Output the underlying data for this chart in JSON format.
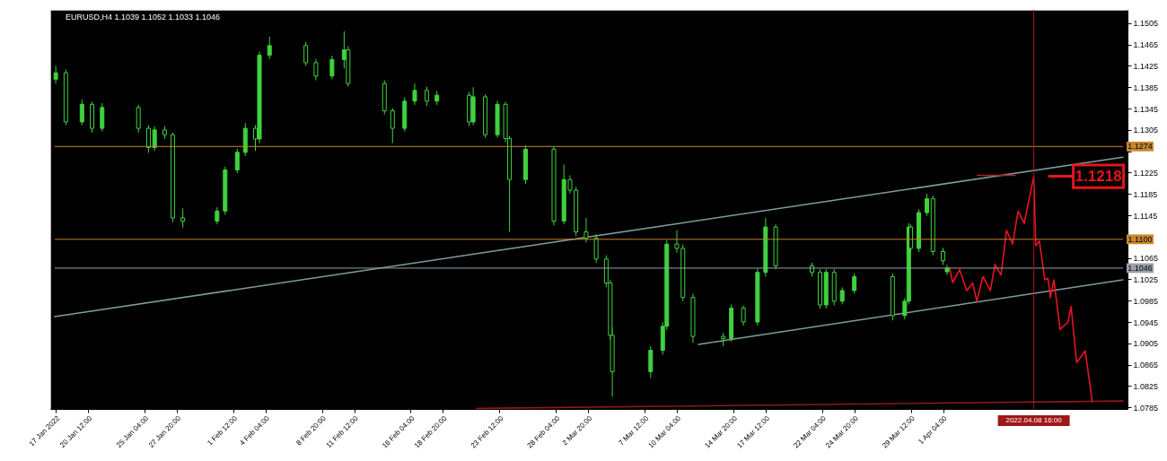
{
  "chart_data": {
    "type": "candlestick",
    "title": "EURUSD,H4 1.1039 1.1052 1.1033 1.1046",
    "xlim": [
      "2022-01-17T18:00",
      "2022-04-16T01:00"
    ],
    "xticks": [
      {
        "value": "2022-01-17T20:00",
        "label": "17 Jan 2022"
      },
      {
        "value": "2022-01-20T12:00",
        "label": "20 Jan 12:00"
      },
      {
        "value": "2022-01-25T04:00",
        "label": "25 Jan 04:00"
      },
      {
        "value": "2022-01-27T20:00",
        "label": "27 Jan 20:00"
      },
      {
        "value": "2022-02-01T12:00",
        "label": "1 Feb 12:00"
      },
      {
        "value": "2022-02-04T04:00",
        "label": "4 Feb 04:00"
      },
      {
        "value": "2022-02-08T20:00",
        "label": "8 Feb 20:00"
      },
      {
        "value": "2022-02-11T12:00",
        "label": "11 Feb 12:00"
      },
      {
        "value": "2022-02-16T04:00",
        "label": "16 Feb 04:00"
      },
      {
        "value": "2022-02-18T20:00",
        "label": "18 Feb 20:00"
      },
      {
        "value": "2022-02-23T12:00",
        "label": "23 Feb 12:00"
      },
      {
        "value": "2022-02-28T04:00",
        "label": "28 Feb 04:00"
      },
      {
        "value": "2022-03-02T20:00",
        "label": "2 Mar 20:00"
      },
      {
        "value": "2022-03-07T12:00",
        "label": "7 Mar 12:00"
      },
      {
        "value": "2022-03-10T04:00",
        "label": "10 Mar 04:00"
      },
      {
        "value": "2022-03-14T20:00",
        "label": "14 Mar 20:00"
      },
      {
        "value": "2022-03-17T12:00",
        "label": "17 Mar 12:00"
      },
      {
        "value": "2022-03-22T04:00",
        "label": "22 Mar 04:00"
      },
      {
        "value": "2022-03-24T20:00",
        "label": "24 Mar 20:00"
      },
      {
        "value": "2022-03-29T12:00",
        "label": "29 Mar 12:00"
      },
      {
        "value": "2022-04-01T04:00",
        "label": "1 Apr 04:00"
      }
    ],
    "ylim": [
      1.0782,
      1.153
    ],
    "yticks": [
      1.0785,
      1.0825,
      1.0865,
      1.0905,
      1.0945,
      1.0985,
      1.1025,
      1.1065,
      {
        "value": 1.1105,
        "label": null
      },
      1.1145,
      1.1185,
      1.1225,
      {
        "value": 1.1265,
        "label": null
      },
      1.1305,
      1.1345,
      1.1385,
      1.1425,
      1.1465,
      1.1505
    ],
    "series": [
      {
        "type": "line",
        "color": "#7f9c9c",
        "x": [
          "2022-01-17T18:00",
          "2022-04-16T01:00"
        ],
        "values": [
          1.0955,
          1.1254
        ]
      },
      {
        "type": "line",
        "color": "#7f9c9c",
        "x": [
          "2022-03-11T23:00",
          "2022-04-16T01:00"
        ],
        "values": [
          1.0903,
          1.1024
        ]
      },
      {
        "type": "line",
        "color": "#8b1a1a",
        "x": [
          "2022-02-21T15:00",
          "2022-04-16T01:00"
        ],
        "values": [
          1.0783,
          1.0797
        ]
      },
      {
        "type": "line",
        "color": "#b22222",
        "x": [
          "2022-04-04T00:00",
          "2022-04-07T03:00"
        ],
        "values": [
          1.122,
          1.122
        ]
      },
      {
        "type": "line",
        "color": "#e8141e",
        "x": [
          "2022-04-01T17:00",
          "2022-04-01T23:00",
          "2022-04-02T13:00",
          "2022-04-03T03:00",
          "2022-04-03T15:00",
          "2022-04-03T23:00",
          "2022-04-04T11:00",
          "2022-04-05T02:00",
          "2022-04-05T11:00",
          "2022-04-05T23:00",
          "2022-04-06T10:00",
          "2022-04-06T22:00",
          "2022-04-07T09:00",
          "2022-04-07T21:00",
          "2022-04-08T16:00",
          "2022-04-08T20:00",
          "2022-04-09T03:00",
          "2022-04-09T14:00",
          "2022-04-09T20:00",
          "2022-04-10T01:00",
          "2022-04-10T08:00",
          "2022-04-10T20:00",
          "2022-04-11T12:00",
          "2022-04-11T18:00",
          "2022-04-12T05:00",
          "2022-04-12T22:00",
          "2022-04-13T12:00"
        ],
        "values": [
          1.1047,
          1.1019,
          1.1043,
          1.1004,
          1.1018,
          1.0984,
          1.103,
          1.1004,
          1.1053,
          1.1033,
          1.1117,
          1.1091,
          1.1153,
          1.113,
          1.1218,
          1.1088,
          1.1097,
          1.1024,
          1.1027,
          1.0991,
          1.1024,
          1.0931,
          1.0945,
          1.0974,
          1.0869,
          1.0891,
          1.0796
        ]
      },
      {
        "type": "candlestick",
        "color": "#3fd23f",
        "x": [
          "2022-01-17T20:00",
          "2022-01-18T16:00",
          "2022-01-20T00:00",
          "2022-01-20T20:00",
          "2022-01-21T16:00",
          "2022-01-24T16:00",
          "2022-01-25T12:00",
          "2022-01-26T00:00",
          "2022-01-26T20:00",
          "2022-01-27T12:00",
          "2022-01-28T08:00",
          "2022-01-31T04:00",
          "2022-01-31T20:00",
          "2022-02-01T20:00",
          "2022-02-02T12:00",
          "2022-02-03T08:00",
          "2022-02-03T16:00",
          "2022-02-04T12:00",
          "2022-02-07T12:00",
          "2022-02-08T08:00",
          "2022-02-09T16:00",
          "2022-02-10T16:00",
          "2022-02-11T00:00",
          "2022-02-14T00:00",
          "2022-02-14T16:00",
          "2022-02-15T16:00",
          "2022-02-16T12:00",
          "2022-02-17T12:00",
          "2022-02-18T08:00",
          "2022-02-21T00:00",
          "2022-02-21T08:00",
          "2022-02-22T08:00",
          "2022-02-23T08:00",
          "2022-02-24T00:00",
          "2022-02-24T08:00",
          "2022-02-25T16:00",
          "2022-02-28T00:00",
          "2022-02-28T20:00",
          "2022-03-01T08:00",
          "2022-03-01T20:00",
          "2022-03-02T16:00",
          "2022-03-03T12:00",
          "2022-03-04T08:00",
          "2022-03-04T16:00",
          "2022-03-04T20:00",
          "2022-03-08T00:00",
          "2022-03-09T00:00",
          "2022-03-09T08:00",
          "2022-03-10T04:00",
          "2022-03-10T16:00",
          "2022-03-11T12:00",
          "2022-03-14T00:00",
          "2022-03-14T16:00",
          "2022-03-15T16:00",
          "2022-03-16T20:00",
          "2022-03-17T12:00",
          "2022-03-18T08:00",
          "2022-03-21T08:00",
          "2022-03-22T00:00",
          "2022-03-22T12:00",
          "2022-03-23T04:00",
          "2022-03-23T20:00",
          "2022-03-24T20:00",
          "2022-03-28T00:00",
          "2022-03-29T00:00",
          "2022-03-29T08:00",
          "2022-03-29T12:00",
          "2022-03-30T04:00",
          "2022-03-30T20:00",
          "2022-03-31T08:00",
          "2022-04-01T04:00",
          "2022-04-01T12:00"
        ],
        "ohlc": [
          [
            1.14,
            1.1425,
            1.1392,
            1.1412
          ],
          [
            1.1412,
            1.1418,
            1.1314,
            1.132
          ],
          [
            1.132,
            1.1362,
            1.1314,
            1.1353
          ],
          [
            1.1353,
            1.1358,
            1.13,
            1.1308
          ],
          [
            1.1308,
            1.1355,
            1.1302,
            1.1347
          ],
          [
            1.1347,
            1.1352,
            1.13,
            1.1308
          ],
          [
            1.1308,
            1.1314,
            1.1262,
            1.1272
          ],
          [
            1.1272,
            1.1312,
            1.1266,
            1.1305
          ],
          [
            1.1305,
            1.1312,
            1.1288,
            1.1296
          ],
          [
            1.1296,
            1.13,
            1.1132,
            1.114
          ],
          [
            1.114,
            1.1158,
            1.1122,
            1.1134
          ],
          [
            1.1134,
            1.116,
            1.1128,
            1.1153
          ],
          [
            1.1153,
            1.1236,
            1.1146,
            1.123
          ],
          [
            1.123,
            1.127,
            1.1224,
            1.1263
          ],
          [
            1.1263,
            1.1318,
            1.1256,
            1.1308
          ],
          [
            1.1308,
            1.1314,
            1.1266,
            1.1288
          ],
          [
            1.1288,
            1.1452,
            1.128,
            1.1445
          ],
          [
            1.1445,
            1.148,
            1.1438,
            1.1463
          ],
          [
            1.1463,
            1.147,
            1.1425,
            1.1431
          ],
          [
            1.1431,
            1.1438,
            1.1398,
            1.1406
          ],
          [
            1.1406,
            1.1444,
            1.14,
            1.1437
          ],
          [
            1.1437,
            1.149,
            1.142,
            1.1455
          ],
          [
            1.1455,
            1.1462,
            1.1386,
            1.1392
          ],
          [
            1.1392,
            1.1398,
            1.1334,
            1.1341
          ],
          [
            1.1341,
            1.1346,
            1.128,
            1.1308
          ],
          [
            1.1308,
            1.1366,
            1.1302,
            1.1359
          ],
          [
            1.1359,
            1.1392,
            1.1352,
            1.1379
          ],
          [
            1.1379,
            1.1386,
            1.135,
            1.1359
          ],
          [
            1.1359,
            1.1378,
            1.1352,
            1.137
          ],
          [
            1.137,
            1.1376,
            1.1312,
            1.132
          ],
          [
            1.132,
            1.1385,
            1.1314,
            1.1367
          ],
          [
            1.1367,
            1.1372,
            1.129,
            1.1296
          ],
          [
            1.1296,
            1.136,
            1.129,
            1.1353
          ],
          [
            1.1353,
            1.1358,
            1.1282,
            1.1289
          ],
          [
            1.1289,
            1.1294,
            1.1114,
            1.1212
          ],
          [
            1.1212,
            1.1276,
            1.1204,
            1.1269
          ],
          [
            1.1269,
            1.1274,
            1.1126,
            1.1134
          ],
          [
            1.1134,
            1.124,
            1.1128,
            1.1212
          ],
          [
            1.1212,
            1.122,
            1.1186,
            1.1192
          ],
          [
            1.1192,
            1.1198,
            1.1106,
            1.1114
          ],
          [
            1.1114,
            1.114,
            1.1094,
            1.1102
          ],
          [
            1.1102,
            1.111,
            1.1056,
            1.1063
          ],
          [
            1.1063,
            1.107,
            1.101,
            1.1018
          ],
          [
            1.1018,
            1.1024,
            1.0912,
            1.092
          ],
          [
            1.092,
            1.0935,
            1.0805,
            1.0852
          ],
          [
            1.0852,
            1.09,
            1.084,
            1.0892
          ],
          [
            1.0892,
            1.0945,
            1.0884,
            1.0937
          ],
          [
            1.0937,
            1.1098,
            1.093,
            1.1091
          ],
          [
            1.1091,
            1.1117,
            1.1075,
            1.1083
          ],
          [
            1.1083,
            1.109,
            1.0984,
            1.0991
          ],
          [
            1.0991,
            1.0998,
            1.0906,
            1.0918
          ],
          [
            1.0918,
            1.0925,
            1.09,
            1.0914
          ],
          [
            1.0914,
            1.0978,
            1.0908,
            1.0971
          ],
          [
            1.0971,
            1.0976,
            1.0938,
            1.0945
          ],
          [
            1.0945,
            1.1045,
            1.0938,
            1.1038
          ],
          [
            1.1038,
            1.114,
            1.103,
            1.1123
          ],
          [
            1.1123,
            1.1128,
            1.1044,
            1.105
          ],
          [
            1.105,
            1.1056,
            1.103,
            1.1038
          ],
          [
            1.1038,
            1.1044,
            1.097,
            1.0977
          ],
          [
            1.0977,
            1.1044,
            1.097,
            1.1038
          ],
          [
            1.1038,
            1.1044,
            1.0976,
            1.0984
          ],
          [
            1.0984,
            1.101,
            1.0978,
            1.1004
          ],
          [
            1.1004,
            1.1036,
            1.0998,
            1.103
          ],
          [
            1.103,
            1.1036,
            1.0948,
            1.0957
          ],
          [
            1.0957,
            1.099,
            1.095,
            1.0984
          ],
          [
            1.0984,
            1.113,
            1.0978,
            1.1123
          ],
          [
            1.1123,
            1.1128,
            1.1076,
            1.1083
          ],
          [
            1.1083,
            1.1156,
            1.1076,
            1.115
          ],
          [
            1.115,
            1.1185,
            1.1144,
            1.1176
          ],
          [
            1.1176,
            1.1182,
            1.107,
            1.1077
          ],
          [
            1.1077,
            1.1084,
            1.1052,
            1.106
          ],
          [
            1.1039,
            1.1052,
            1.1033,
            1.1046
          ]
        ]
      }
    ],
    "ref_lines": [
      {
        "axis": "y",
        "value": 1.1274,
        "label": "1.1274",
        "color": "#c8862e"
      },
      {
        "axis": "y",
        "value": 1.11,
        "label": "1.1100",
        "color": "#c8862e"
      },
      {
        "axis": "y",
        "value": 1.1046,
        "label": "1.1046",
        "color": "#9aa0a6"
      },
      {
        "axis": "x",
        "value": "2022-04-08T16:00",
        "label": "2022.04.08 16:00",
        "color": "#a01818"
      }
    ],
    "annotations": [
      {
        "text": "1.1218",
        "x": "2022-04-08T16:00",
        "y": 1.1218
      }
    ]
  }
}
